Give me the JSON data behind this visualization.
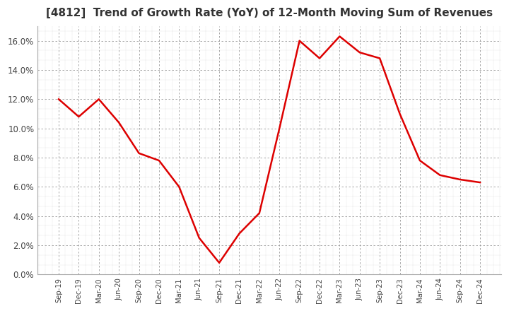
{
  "title": "[4812]  Trend of Growth Rate (YoY) of 12-Month Moving Sum of Revenues",
  "title_fontsize": 11,
  "line_color": "#dd0000",
  "background_color": "#ffffff",
  "plot_bg_color": "#ffffff",
  "major_grid_color": "#999999",
  "ylim": [
    0.0,
    0.17
  ],
  "yticks": [
    0.0,
    0.02,
    0.04,
    0.06,
    0.08,
    0.1,
    0.12,
    0.14,
    0.16
  ],
  "x_labels": [
    "Sep-19",
    "Dec-19",
    "Mar-20",
    "Jun-20",
    "Sep-20",
    "Dec-20",
    "Mar-21",
    "Jun-21",
    "Sep-21",
    "Dec-21",
    "Mar-22",
    "Jun-22",
    "Sep-22",
    "Dec-22",
    "Mar-23",
    "Jun-23",
    "Sep-23",
    "Dec-23",
    "Mar-24",
    "Jun-24",
    "Sep-24",
    "Dec-24"
  ],
  "values": [
    0.12,
    0.108,
    0.12,
    0.104,
    0.083,
    0.078,
    0.06,
    0.025,
    0.008,
    0.028,
    0.042,
    0.1,
    0.16,
    0.148,
    0.163,
    0.152,
    0.148,
    0.11,
    0.078,
    0.068,
    0.065,
    0.063
  ]
}
